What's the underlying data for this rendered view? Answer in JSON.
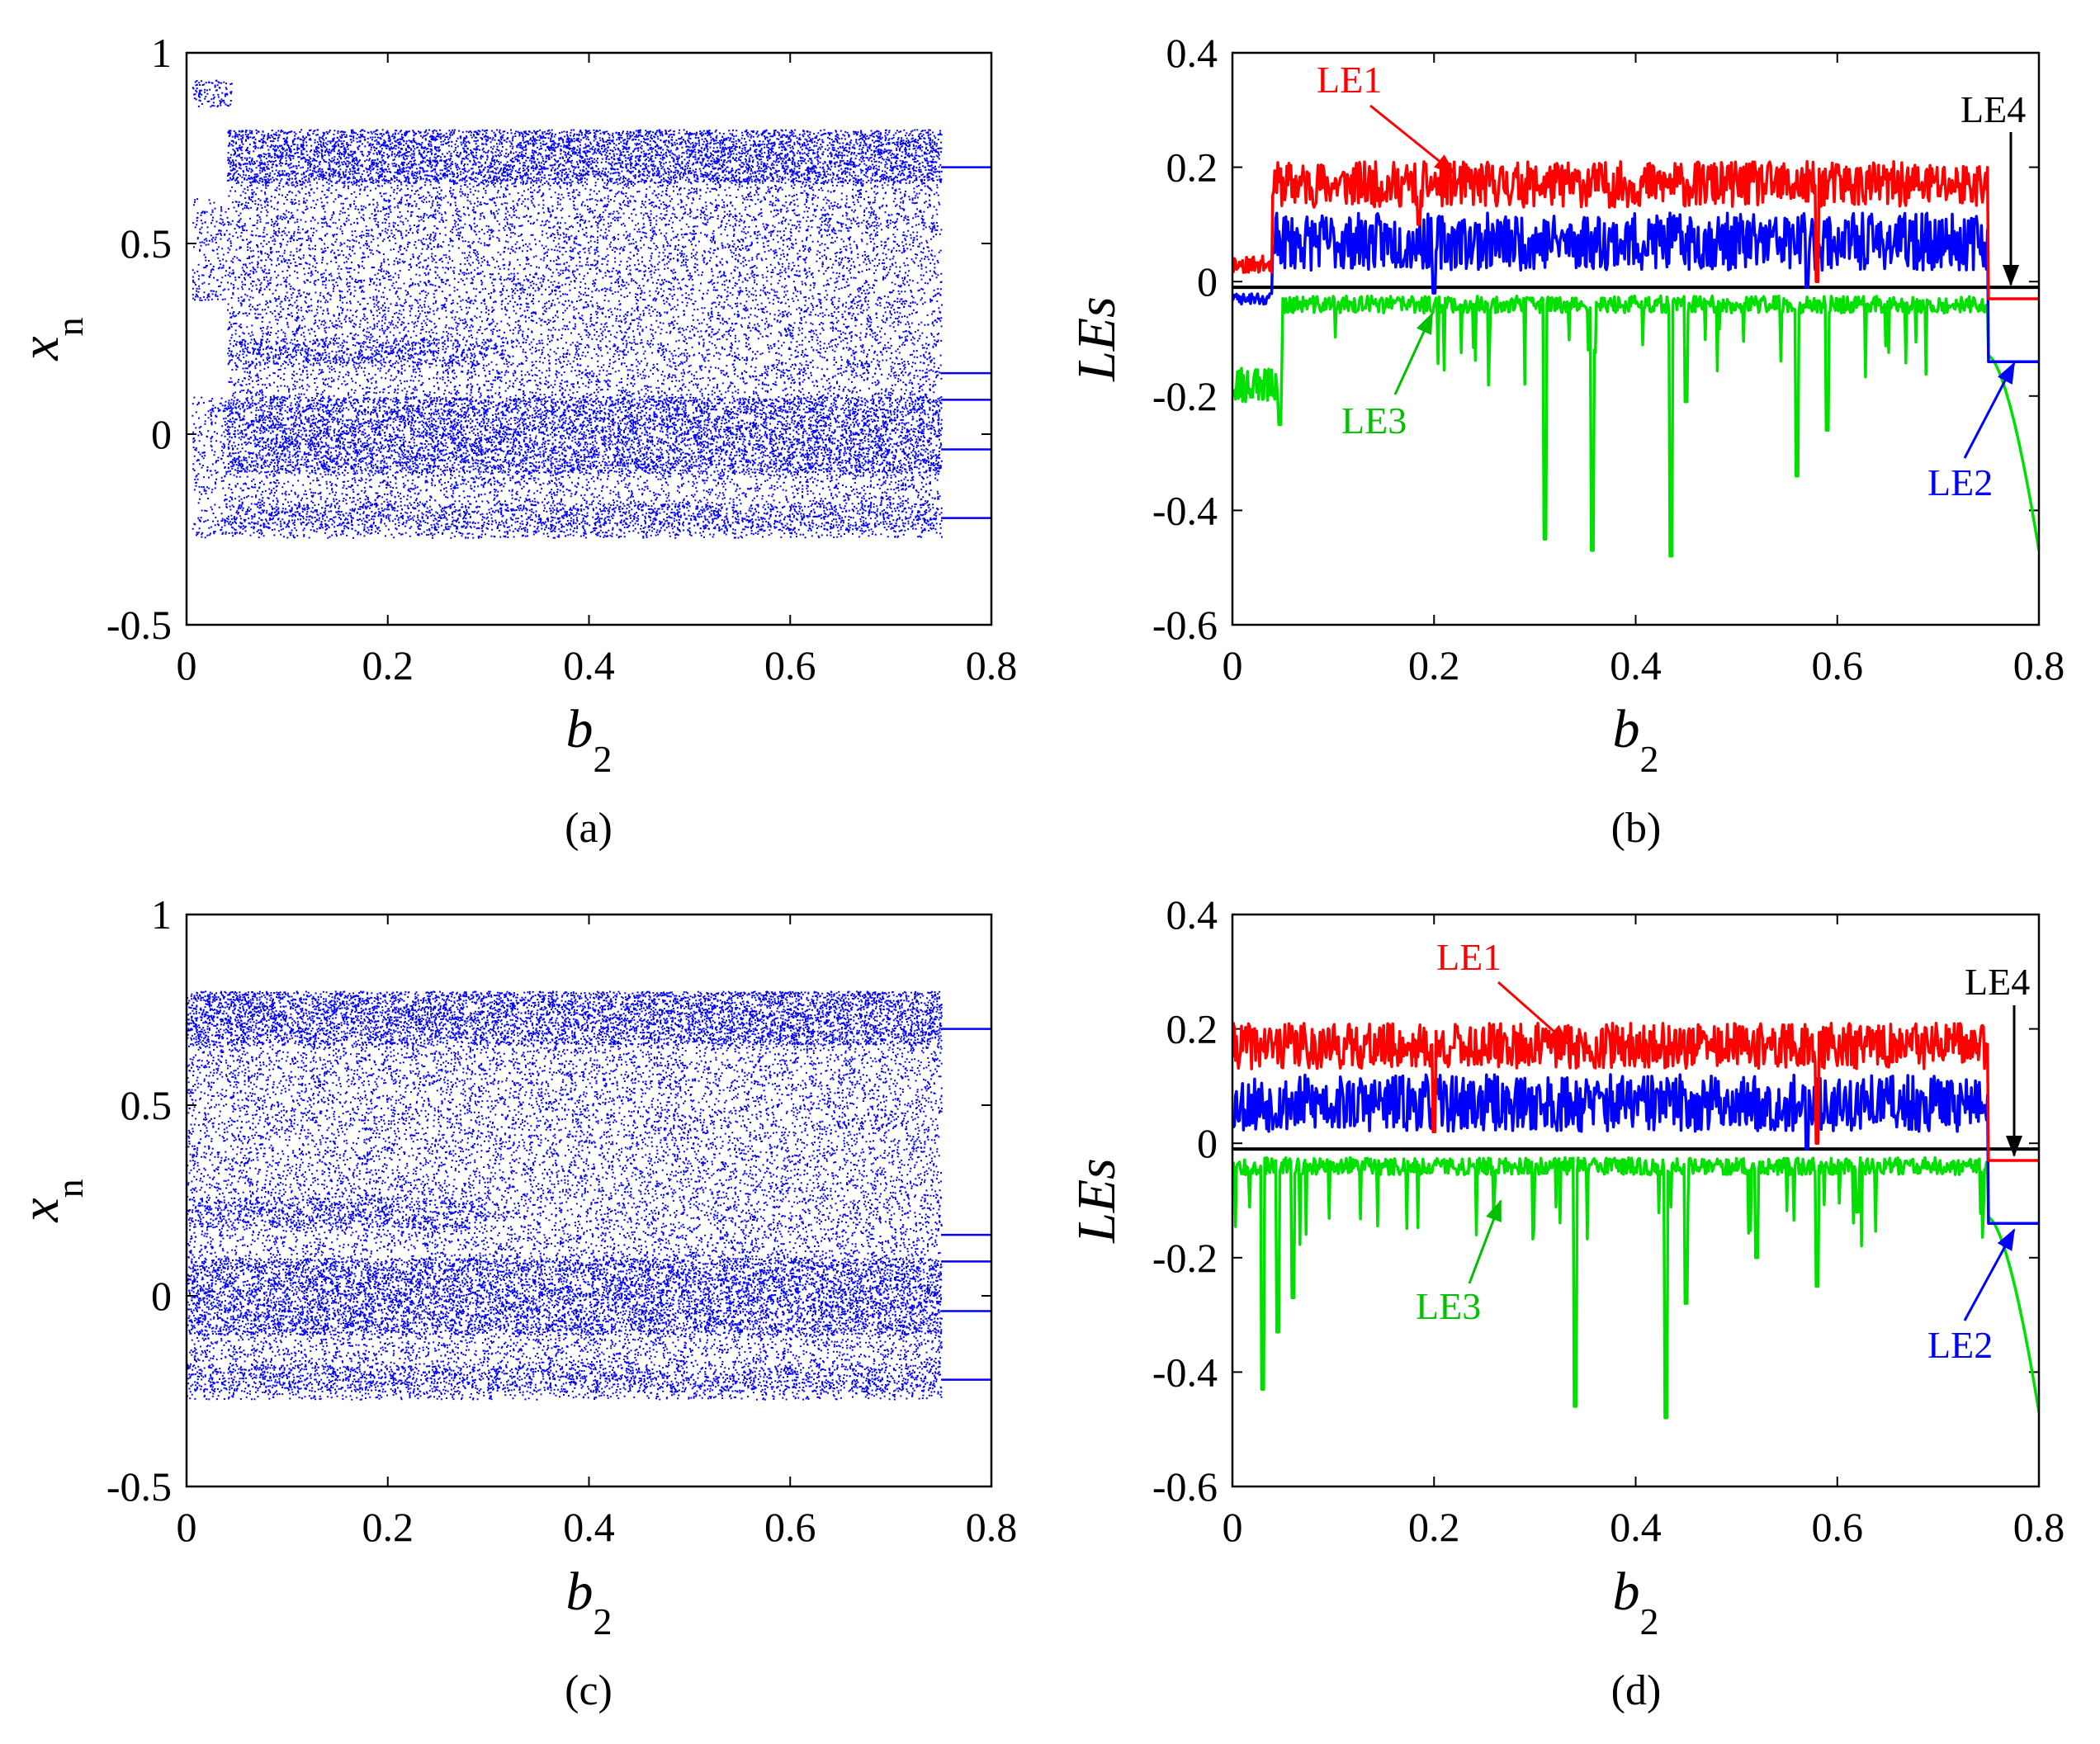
{
  "chart_data": [
    {
      "panel": "(a)",
      "type": "scatter",
      "xlabel": "b",
      "xlabel_sub": "2",
      "ylabel": "x",
      "ylabel_sub": "n",
      "xlim": [
        0,
        0.8
      ],
      "ylim": [
        -0.5,
        1
      ],
      "xticks": [
        0,
        0.2,
        0.4,
        0.6,
        0.8
      ],
      "xtick_labels": [
        "0",
        "0.2",
        "0.4",
        "0.6",
        "0.8"
      ],
      "yticks": [
        -0.5,
        0,
        0.5,
        1
      ],
      "ytick_labels": [
        "-0.5",
        "0",
        "0.5",
        "1"
      ],
      "point_color": "#0000ff",
      "bands": [
        {
          "x": [
            0.005,
            0.045
          ],
          "y": [
            0.86,
            0.93
          ],
          "density": 0.9
        },
        {
          "x": [
            0.005,
            0.04
          ],
          "y": [
            0.35,
            0.62
          ],
          "density": 0.5
        },
        {
          "x": [
            0.005,
            0.04
          ],
          "y": [
            -0.27,
            0.1
          ],
          "density": 0.5
        },
        {
          "x": [
            0.04,
            0.75
          ],
          "y": [
            0.66,
            0.8
          ],
          "density": 1.0
        },
        {
          "x": [
            0.04,
            0.75
          ],
          "y": [
            -0.27,
            0.8
          ],
          "density": 0.55
        },
        {
          "x": [
            0.04,
            0.75
          ],
          "y": [
            -0.1,
            0.1
          ],
          "density": 0.9
        },
        {
          "x": [
            0.04,
            0.75
          ],
          "y": [
            -0.25,
            -0.18
          ],
          "density": 0.6
        },
        {
          "x": [
            0.04,
            0.3
          ],
          "y": [
            0.18,
            0.25
          ],
          "density": 0.7
        }
      ],
      "periodic_lines": [
        {
          "x": [
            0.75,
            0.8
          ],
          "y": 0.7
        },
        {
          "x": [
            0.75,
            0.8
          ],
          "y": 0.16
        },
        {
          "x": [
            0.75,
            0.8
          ],
          "y": 0.09
        },
        {
          "x": [
            0.75,
            0.8
          ],
          "y": -0.04
        },
        {
          "x": [
            0.75,
            0.8
          ],
          "y": -0.22
        }
      ]
    },
    {
      "panel": "(b)",
      "type": "line",
      "xlabel": "b",
      "xlabel_sub": "2",
      "ylabel": "LEs",
      "xlim": [
        0,
        0.8
      ],
      "ylim": [
        -0.6,
        0.4
      ],
      "xticks": [
        0,
        0.2,
        0.4,
        0.6,
        0.8
      ],
      "xtick_labels": [
        "0",
        "0.2",
        "0.4",
        "0.6",
        "0.8"
      ],
      "yticks": [
        -0.6,
        -0.4,
        -0.2,
        0,
        0.2,
        0.4
      ],
      "ytick_labels": [
        "-0.6",
        "-0.4",
        "-0.2",
        "0",
        "0.2",
        "0.4"
      ],
      "series": [
        {
          "name": "LE1",
          "color": "#ff0000",
          "base": 0.17,
          "amp": 0.04,
          "end_value": -0.03,
          "dips": [
            [
              0.58,
              0.0
            ],
            [
              0.185,
              0.1
            ]
          ],
          "seed": 11
        },
        {
          "name": "LE2",
          "color": "#0000ff",
          "base": 0.07,
          "amp": 0.05,
          "end_value": -0.14,
          "dips": [
            [
              0.2,
              -0.02
            ],
            [
              0.57,
              -0.01
            ]
          ],
          "seed": 23
        },
        {
          "name": "LE3",
          "color": "#00e000",
          "base": -0.04,
          "amp": 0.015,
          "end_value": -0.47,
          "dips": [
            [
              0.31,
              -0.45
            ],
            [
              0.357,
              -0.47
            ],
            [
              0.435,
              -0.48
            ],
            [
              0.56,
              -0.34
            ],
            [
              0.59,
              -0.26
            ],
            [
              0.45,
              -0.21
            ],
            [
              0.047,
              -0.25
            ]
          ],
          "seed": 37
        },
        {
          "name": "LE4",
          "color": "#000000",
          "base": -0.01,
          "amp": 0.0,
          "end_value": -0.01,
          "dips": [],
          "seed": 5
        }
      ],
      "annotations": [
        {
          "text": "LE1",
          "color": "#ff0000"
        },
        {
          "text": "LE2",
          "color": "#0000ff"
        },
        {
          "text": "LE3",
          "color": "#00c000"
        },
        {
          "text": "LE4",
          "color": "#000000"
        }
      ]
    },
    {
      "panel": "(c)",
      "type": "scatter",
      "xlabel": "b",
      "xlabel_sub": "2",
      "ylabel": "x",
      "ylabel_sub": "n",
      "xlim": [
        0,
        0.8
      ],
      "ylim": [
        -0.5,
        1
      ],
      "xticks": [
        0,
        0.2,
        0.4,
        0.6,
        0.8
      ],
      "xtick_labels": [
        "0",
        "0.2",
        "0.4",
        "0.6",
        "0.8"
      ],
      "yticks": [
        -0.5,
        0,
        0.5,
        1
      ],
      "ytick_labels": [
        "-0.5",
        "0",
        "0.5",
        "1"
      ],
      "point_color": "#0000ff",
      "bands": [
        {
          "x": [
            0.0,
            0.75
          ],
          "y": [
            0.66,
            0.8
          ],
          "density": 1.0
        },
        {
          "x": [
            0.0,
            0.75
          ],
          "y": [
            -0.27,
            0.8
          ],
          "density": 0.55
        },
        {
          "x": [
            0.0,
            0.75
          ],
          "y": [
            -0.1,
            0.1
          ],
          "density": 0.9
        },
        {
          "x": [
            0.0,
            0.75
          ],
          "y": [
            -0.25,
            -0.18
          ],
          "density": 0.6
        },
        {
          "x": [
            0.0,
            0.3
          ],
          "y": [
            0.18,
            0.26
          ],
          "density": 0.7
        }
      ],
      "periodic_lines": [
        {
          "x": [
            0.75,
            0.8
          ],
          "y": 0.7
        },
        {
          "x": [
            0.75,
            0.8
          ],
          "y": 0.16
        },
        {
          "x": [
            0.75,
            0.8
          ],
          "y": 0.09
        },
        {
          "x": [
            0.75,
            0.8
          ],
          "y": -0.04
        },
        {
          "x": [
            0.75,
            0.8
          ],
          "y": -0.22
        }
      ]
    },
    {
      "panel": "(d)",
      "type": "line",
      "xlabel": "b",
      "xlabel_sub": "2",
      "ylabel": "LEs",
      "xlim": [
        0,
        0.8
      ],
      "ylim": [
        -0.6,
        0.4
      ],
      "xticks": [
        0,
        0.2,
        0.4,
        0.6,
        0.8
      ],
      "xtick_labels": [
        "0",
        "0.2",
        "0.4",
        "0.6",
        "0.8"
      ],
      "yticks": [
        -0.6,
        -0.4,
        -0.2,
        0,
        0.2,
        0.4
      ],
      "ytick_labels": [
        "-0.6",
        "-0.4",
        "-0.2",
        "0",
        "0.2",
        "0.4"
      ],
      "series": [
        {
          "name": "LE1",
          "color": "#ff0000",
          "base": 0.17,
          "amp": 0.04,
          "end_value": -0.03,
          "dips": [
            [
              0.58,
              0.0
            ],
            [
              0.2,
              0.02
            ]
          ],
          "seed": 41
        },
        {
          "name": "LE2",
          "color": "#0000ff",
          "base": 0.07,
          "amp": 0.05,
          "end_value": -0.14,
          "dips": [
            [
              0.57,
              -0.01
            ]
          ],
          "seed": 53
        },
        {
          "name": "LE3",
          "color": "#00e000",
          "base": -0.04,
          "amp": 0.015,
          "end_value": -0.47,
          "dips": [
            [
              0.03,
              -0.43
            ],
            [
              0.045,
              -0.33
            ],
            [
              0.06,
              -0.27
            ],
            [
              0.34,
              -0.46
            ],
            [
              0.43,
              -0.48
            ],
            [
              0.45,
              -0.28
            ],
            [
              0.52,
              -0.2
            ],
            [
              0.58,
              -0.25
            ],
            [
              0.62,
              -0.12
            ]
          ],
          "seed": 67
        },
        {
          "name": "LE4",
          "color": "#000000",
          "base": -0.01,
          "amp": 0.0,
          "end_value": -0.01,
          "dips": [],
          "seed": 7
        }
      ],
      "annotations": [
        {
          "text": "LE1",
          "color": "#ff0000"
        },
        {
          "text": "LE2",
          "color": "#0000ff"
        },
        {
          "text": "LE3",
          "color": "#00c000"
        },
        {
          "text": "LE4",
          "color": "#000000"
        }
      ]
    }
  ]
}
